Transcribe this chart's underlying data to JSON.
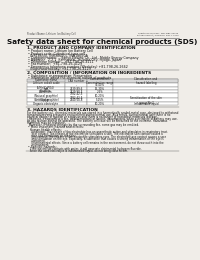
{
  "bg_color": "#f0ede8",
  "header_top_left": "Product Name: Lithium Ion Battery Cell",
  "header_top_right": "Substance Number: SBF-MBF-00015\nEstablishment / Revision: Dec.7.2016",
  "main_title": "Safety data sheet for chemical products (SDS)",
  "section1_title": "1. PRODUCT AND COMPANY IDENTIFICATION",
  "section1_lines": [
    " • Product name: Lithium Ion Battery Cell",
    " • Product code: Cylindrical-type cell",
    "   INR18650J, INR18650L, INR18650A",
    " • Company name:    Sanyo Electric Co., Ltd., Mobile Energy Company",
    " • Address:   2-2-1  Kannondai, Tsukuba-City, Hyogo, Japan",
    " • Telephone number:   +81-798-26-4111",
    " • Fax number:  +81-798-26-4129",
    " • Emergency telephone number (Weekday) +81-798-26-2662",
    "   (Night and holiday) +81-798-26-4129"
  ],
  "section2_title": "2. COMPOSITION / INFORMATION ON INGREDIENTS",
  "section2_sub": " • Substance or preparation: Preparation",
  "section2_sub2": " • Information about the chemical nature of products",
  "table_col_headers": [
    "Common chemical name",
    "CAS number",
    "Concentration /\nConcentration range",
    "Classification and\nhazard labeling"
  ],
  "table_row_name": [
    "Substance name",
    "",
    "",
    ""
  ],
  "table_rows": [
    [
      "Lithium cobalt oxide\n(LiMn/CoPO4)",
      "-",
      "30-40%",
      ""
    ],
    [
      "Iron",
      "7439-89-6",
      "15-30%",
      ""
    ],
    [
      "Aluminum",
      "7429-90-5",
      "2-6%",
      ""
    ],
    [
      "Graphite\n(Natural graphite)\n(Artificial graphite)",
      "7782-42-5\n7782-42-5",
      "10-20%",
      ""
    ],
    [
      "Copper",
      "7440-50-8",
      "5-15%",
      "Sensitization of the skin\ngroup No.2"
    ],
    [
      "Organic electrolyte",
      "-",
      "10-20%",
      "Inflammable liquid"
    ]
  ],
  "table_row_heights": [
    5.5,
    4,
    4,
    6,
    5.5,
    4
  ],
  "section3_title": "3. HAZARDS IDENTIFICATION",
  "section3_body": [
    "For the battery cell, chemical materials are stored in a hermetically sealed metal case, designed to withstand",
    "temperatures and pressures encountered during normal use. As a result, during normal use, there is no",
    "physical danger of ignition or explosion and there is no danger of hazardous materials leakage.",
    "  However, if exposed to a fire, added mechanical shocks, decomposed, when electrolyte of battery may use.",
    "As gas release cannot be operated. The battery cell case will be breached at the extreme. Hazardous",
    "materials may be released.",
    "  Moreover, if heated strongly by the surrounding fire, some gas may be emitted."
  ],
  "section3_bullet1": " • Most important hazard and effects:",
  "section3_human": "  Human health effects:",
  "section3_human_lines": [
    "    Inhalation: The release of the electrolyte has an anaesthetic action and stimulates in respiratory tract.",
    "    Skin contact: The release of the electrolyte stimulates a skin. The electrolyte skin contact causes a",
    "    sore and stimulation on the skin.",
    "    Eye contact: The release of the electrolyte stimulates eyes. The electrolyte eye contact causes a sore",
    "    and stimulation on the eye. Especially, a substance that causes a strong inflammation of the eye is",
    "    contained.",
    "    Environmental effects: Since a battery cell remains in the environment, do not throw out it into the",
    "    environment."
  ],
  "section3_specific": " • Specific hazards:",
  "section3_specific_lines": [
    "  If the electrolyte contacts with water, it will generate detrimental hydrogen fluoride.",
    "  Since the used electrolyte is inflammable liquid, do not bring close to fire."
  ],
  "font_color": "#111111",
  "table_border_color": "#777777",
  "header_line_color": "#555555",
  "table_header_bg": "#d8d8d8",
  "table_row_bg": "#ffffff"
}
